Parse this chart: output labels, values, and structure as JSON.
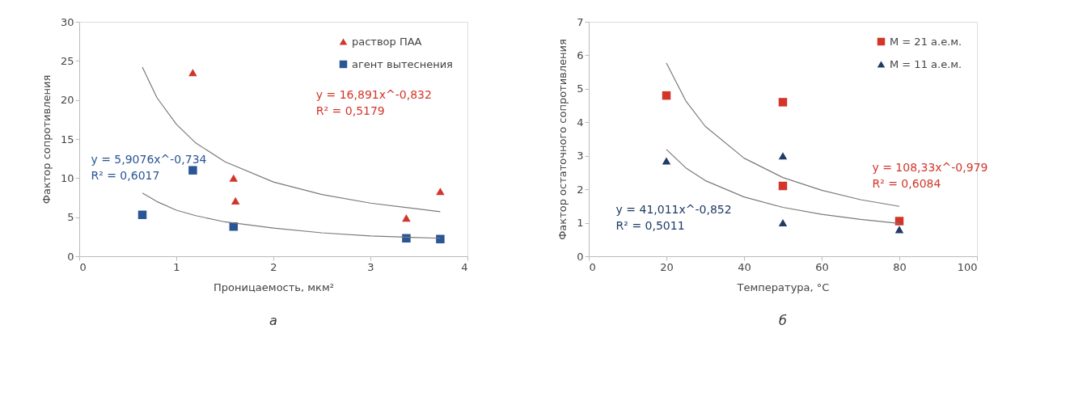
{
  "chart_data": [
    {
      "type": "scatter",
      "xlabel": "Проницаемость, мкм²",
      "ylabel": "Фактор сопротивления",
      "xlim": [
        0,
        4
      ],
      "ylim": [
        0,
        30
      ],
      "xticks": [
        0,
        1,
        2,
        3,
        4
      ],
      "yticks": [
        0,
        5,
        10,
        15,
        20,
        25,
        30
      ],
      "grid": false,
      "legend": "top right",
      "series": [
        {
          "name": "раствор ПАА",
          "color": "#d2362a",
          "marker": "triangle",
          "x": [
            1.17,
            1.59,
            1.61,
            3.37,
            3.72
          ],
          "values": [
            23.5,
            10,
            7.1,
            4.9,
            8.3
          ]
        },
        {
          "name": "агент вытеснения",
          "color": "#2a5596",
          "marker": "square",
          "x": [
            0.65,
            1.17,
            1.59,
            3.37,
            3.72
          ],
          "values": [
            5.3,
            11,
            3.8,
            2.3,
            2.2
          ]
        },
        {
          "type": "line",
          "color": "#7a7a7a",
          "x": [
            0.65,
            0.8,
            1,
            1.2,
            1.5,
            2,
            2.5,
            3,
            3.72
          ],
          "values": [
            24.2,
            20.3,
            16.9,
            14.5,
            12.1,
            9.5,
            7.9,
            6.8,
            5.7
          ]
        },
        {
          "type": "line",
          "color": "#7a7a7a",
          "x": [
            0.65,
            0.8,
            1,
            1.2,
            1.5,
            2,
            2.5,
            3,
            3.72
          ],
          "values": [
            8.1,
            7.0,
            5.9,
            5.2,
            4.4,
            3.6,
            3.0,
            2.6,
            2.3
          ]
        }
      ],
      "annotations": [
        "y = 16,891x^-0,832\nR² = 0,5179",
        "y = 5,9076x^-0,734\nR² = 0,6017",
        "а"
      ]
    },
    {
      "type": "scatter",
      "xlabel": "Температура, °C",
      "ylabel": "Фактор остаточного сопротивления",
      "xlim": [
        0,
        100
      ],
      "ylim": [
        0,
        7
      ],
      "xticks": [
        0,
        20,
        40,
        60,
        80,
        100
      ],
      "yticks": [
        0,
        1,
        2,
        3,
        4,
        5,
        6,
        7
      ],
      "grid": false,
      "legend": "top right",
      "series": [
        {
          "name": "M = 21 а.е.м.",
          "color": "#d2362a",
          "marker": "square",
          "x": [
            20,
            50,
            50,
            80
          ],
          "values": [
            4.8,
            4.6,
            2.1,
            1.05
          ]
        },
        {
          "name": "M = 11 а.е.м.",
          "color": "#1f3b66",
          "marker": "triangle",
          "x": [
            20,
            50,
            50,
            80
          ],
          "values": [
            2.85,
            3.0,
            1.0,
            0.8
          ]
        },
        {
          "type": "line",
          "color": "#7a7a7a",
          "x": [
            20,
            25,
            30,
            40,
            50,
            60,
            70,
            80
          ],
          "values": [
            5.77,
            4.64,
            3.88,
            2.93,
            2.35,
            1.97,
            1.69,
            1.49
          ]
        },
        {
          "type": "line",
          "color": "#7a7a7a",
          "x": [
            20,
            25,
            30,
            40,
            50,
            60,
            70,
            80
          ],
          "values": [
            3.19,
            2.64,
            2.26,
            1.77,
            1.46,
            1.25,
            1.1,
            0.98
          ]
        }
      ],
      "annotations": [
        "y = 108,33x^-0,979\nR² = 0,6084",
        "y = 41,011x^-0,852\nR² = 0,5011",
        "б"
      ]
    }
  ]
}
